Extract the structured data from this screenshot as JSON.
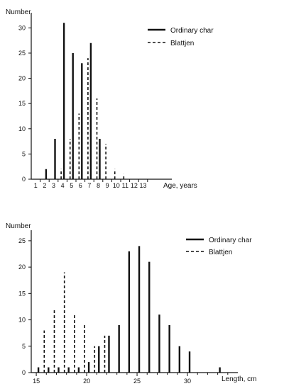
{
  "chart_data": [
    {
      "type": "bar",
      "ylabel": "Number",
      "xlabel": "Age, years",
      "ylim": [
        0,
        33
      ],
      "yticks": [
        0,
        5,
        10,
        15,
        20,
        25,
        30
      ],
      "categories": [
        "1",
        "2",
        "3",
        "4",
        "5",
        "6",
        "7",
        "8",
        "9",
        "10",
        "11",
        "12",
        "13"
      ],
      "legend_position": "top-right",
      "series": [
        {
          "name": "Ordinary char",
          "style": "solid",
          "x": [
            2,
            3,
            4,
            5,
            6,
            7,
            8
          ],
          "values": [
            2,
            8,
            31,
            25,
            23,
            27,
            8
          ]
        },
        {
          "name": "Blattjen",
          "style": "dashed",
          "x": [
            4,
            5,
            6,
            7,
            8,
            9,
            10,
            11
          ],
          "values": [
            2,
            8,
            13,
            24,
            16,
            7,
            2,
            1
          ]
        }
      ]
    },
    {
      "type": "bar",
      "ylabel": "Number",
      "xlabel": "Length, cm",
      "ylim": [
        0,
        27
      ],
      "yticks": [
        0,
        5,
        10,
        15,
        20,
        25
      ],
      "xticks": [
        15,
        20,
        25,
        30
      ],
      "xlim": [
        14.5,
        35
      ],
      "legend_position": "top-right",
      "series": [
        {
          "name": "Ordinary char",
          "style": "solid",
          "x": [
            15,
            16,
            17,
            18,
            19,
            20,
            21,
            22,
            23,
            24,
            25,
            26,
            27,
            28,
            29,
            30,
            33
          ],
          "values": [
            1,
            1,
            1,
            1,
            1,
            2,
            5,
            7,
            9,
            23,
            24,
            21,
            11,
            9,
            5,
            4,
            1
          ]
        },
        {
          "name": "Blattjen",
          "style": "dashed",
          "x": [
            16,
            17,
            18,
            19,
            20,
            21,
            22
          ],
          "values": [
            8,
            12,
            19,
            11,
            9,
            5,
            7
          ]
        }
      ]
    }
  ]
}
